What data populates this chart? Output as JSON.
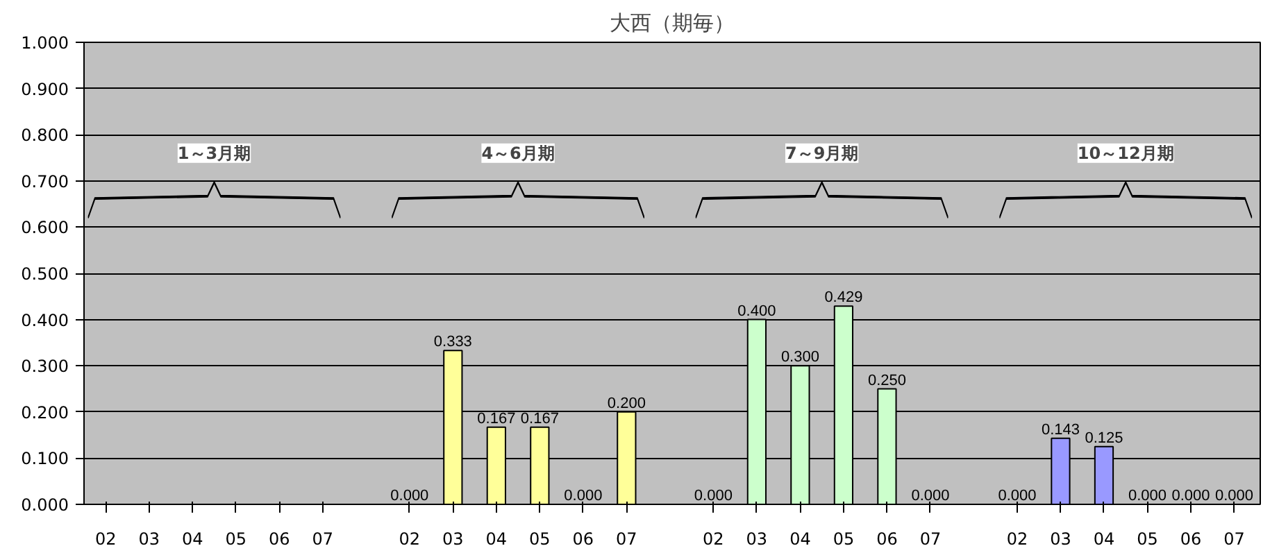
{
  "chart_data": {
    "type": "bar",
    "title": "大西（期毎）",
    "categories": [
      "02",
      "03",
      "04",
      "05",
      "06",
      "07",
      null,
      "02",
      "03",
      "04",
      "05",
      "06",
      "07",
      null,
      "02",
      "03",
      "04",
      "05",
      "06",
      "07",
      null,
      "02",
      "03",
      "04",
      "05",
      "06",
      "07"
    ],
    "values": [
      null,
      null,
      null,
      null,
      null,
      null,
      null,
      0,
      0.333,
      0.167,
      0.167,
      0,
      0.2,
      null,
      0,
      0.4,
      0.3,
      0.429,
      0.25,
      0,
      null,
      0,
      0.143,
      0.125,
      0,
      0,
      0
    ],
    "value_labels": [
      null,
      null,
      null,
      null,
      null,
      null,
      null,
      "0.000",
      "0.333",
      "0.167",
      "0.167",
      "0.000",
      "0.200",
      null,
      "0.000",
      "0.400",
      "0.300",
      "0.429",
      "0.250",
      "0.000",
      null,
      "0.000",
      "0.143",
      "0.125",
      "0.000",
      "0.000",
      "0.000"
    ],
    "colors": [
      "#ffff99",
      "#ffff99",
      "#ffff99",
      "#ffff99",
      "#ffff99",
      "#ffff99",
      "#c0c0c0",
      "#ffff99",
      "#ffff99",
      "#ffff99",
      "#ffff99",
      "#ffff99",
      "#ffff99",
      "#c0c0c0",
      "#ccffcc",
      "#ccffcc",
      "#ccffcc",
      "#ccffcc",
      "#ccffcc",
      "#ccffcc",
      "#c0c0c0",
      "#9999ff",
      "#9999ff",
      "#9999ff",
      "#9999ff",
      "#9999ff",
      "#9999ff"
    ],
    "annotations": [
      "1～3月期",
      "4～6月期",
      "7～9月期",
      "10～12月期"
    ],
    "ylim": [
      0,
      1
    ],
    "yticks": [
      {
        "value": 0,
        "label": "0.000"
      },
      {
        "value": 0.1,
        "label": "0.100"
      },
      {
        "value": 0.2,
        "label": "0.200"
      },
      {
        "value": 0.3,
        "label": "0.300"
      },
      {
        "value": 0.4,
        "label": "0.400"
      },
      {
        "value": 0.5,
        "label": "0.500"
      },
      {
        "value": 0.6,
        "label": "0.600"
      },
      {
        "value": 0.7,
        "label": "0.700"
      },
      {
        "value": 0.8,
        "label": "0.800"
      },
      {
        "value": 0.9,
        "label": "0.900"
      },
      {
        "value": 1,
        "label": "1.000"
      }
    ],
    "grid": "y"
  }
}
